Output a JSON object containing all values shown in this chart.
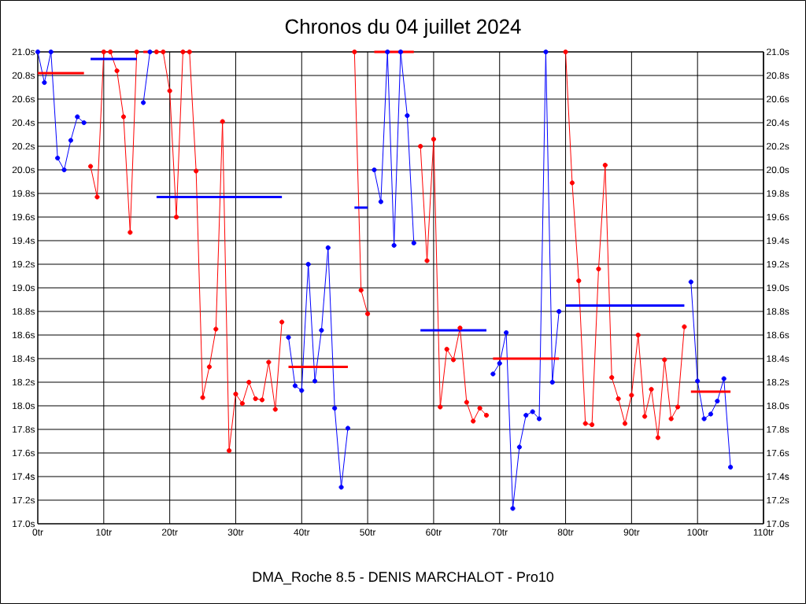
{
  "chart_data": {
    "type": "line",
    "title": "Chronos du 04 juillet 2024",
    "xlabel": "DMA_Roche 8.5 - DENIS MARCHALOT - Pro10",
    "marker": "circle",
    "grid": true,
    "xlim": [
      0,
      110
    ],
    "ylim": [
      17.0,
      21.0
    ],
    "y2lim": [
      17.0,
      21.0
    ],
    "xticks": [
      {
        "value": 0,
        "label": "0tr"
      },
      {
        "value": 10,
        "label": "10tr"
      },
      {
        "value": 20,
        "label": "20tr"
      },
      {
        "value": 30,
        "label": "30tr"
      },
      {
        "value": 40,
        "label": "40tr"
      },
      {
        "value": 50,
        "label": "50tr"
      },
      {
        "value": 60,
        "label": "60tr"
      },
      {
        "value": 70,
        "label": "70tr"
      },
      {
        "value": 80,
        "label": "80tr"
      },
      {
        "value": 90,
        "label": "90tr"
      },
      {
        "value": 100,
        "label": "100tr"
      },
      {
        "value": 110,
        "label": "110tr"
      }
    ],
    "yticks": [
      {
        "value": 17.0,
        "label": "17.0s"
      },
      {
        "value": 17.2,
        "label": "17.2s"
      },
      {
        "value": 17.4,
        "label": "17.4s"
      },
      {
        "value": 17.6,
        "label": "17.6s"
      },
      {
        "value": 17.8,
        "label": "17.8s"
      },
      {
        "value": 18.0,
        "label": "18.0s"
      },
      {
        "value": 18.2,
        "label": "18.2s"
      },
      {
        "value": 18.4,
        "label": "18.4s"
      },
      {
        "value": 18.6,
        "label": "18.6s"
      },
      {
        "value": 18.8,
        "label": "18.8s"
      },
      {
        "value": 19.0,
        "label": "19.0s"
      },
      {
        "value": 19.2,
        "label": "19.2s"
      },
      {
        "value": 19.4,
        "label": "19.4s"
      },
      {
        "value": 19.6,
        "label": "19.6s"
      },
      {
        "value": 19.8,
        "label": "19.8s"
      },
      {
        "value": 20.0,
        "label": "20.0s"
      },
      {
        "value": 20.2,
        "label": "20.2s"
      },
      {
        "value": 20.4,
        "label": "20.4s"
      },
      {
        "value": 20.6,
        "label": "20.6s"
      },
      {
        "value": 20.8,
        "label": "20.8s"
      },
      {
        "value": 21.0,
        "label": "21.0s"
      }
    ],
    "y2ticks": [
      {
        "value": 17.0,
        "label": "17.0s"
      },
      {
        "value": 17.2,
        "label": "17.2s"
      },
      {
        "value": 17.4,
        "label": "17.4s"
      },
      {
        "value": 17.6,
        "label": "17.6s"
      },
      {
        "value": 17.8,
        "label": "17.8s"
      },
      {
        "value": 18.0,
        "label": "18.0s"
      },
      {
        "value": 18.2,
        "label": "18.2s"
      },
      {
        "value": 18.4,
        "label": "18.4s"
      },
      {
        "value": 18.6,
        "label": "18.6s"
      },
      {
        "value": 18.8,
        "label": "18.8s"
      },
      {
        "value": 19.0,
        "label": "19.0s"
      },
      {
        "value": 19.2,
        "label": "19.2s"
      },
      {
        "value": 19.4,
        "label": "19.4s"
      },
      {
        "value": 19.6,
        "label": "19.6s"
      },
      {
        "value": 19.8,
        "label": "19.8s"
      },
      {
        "value": 20.0,
        "label": "20.0s"
      },
      {
        "value": 20.2,
        "label": "20.2s"
      },
      {
        "value": 20.4,
        "label": "20.4s"
      },
      {
        "value": 20.6,
        "label": "20.6s"
      },
      {
        "value": 20.8,
        "label": "20.8s"
      },
      {
        "value": 21.0,
        "label": "21.0s"
      }
    ],
    "series": [
      {
        "color": "#0000ff",
        "x": [
          0,
          1,
          2,
          3,
          4,
          5,
          6,
          7
        ],
        "values": [
          21.0,
          20.74,
          21.0,
          20.1,
          20.0,
          20.25,
          20.45,
          20.4
        ]
      },
      {
        "color": "#ff0000",
        "x": [
          8,
          9,
          10,
          11,
          12,
          13,
          14,
          15
        ],
        "values": [
          20.03,
          19.77,
          21.0,
          21.0,
          20.84,
          20.45,
          19.47,
          21.0
        ]
      },
      {
        "color": "#0000ff",
        "x": [
          16,
          17
        ],
        "values": [
          20.57,
          21.0
        ]
      },
      {
        "color": "#ff0000",
        "x": [
          18,
          19,
          20,
          21,
          22,
          23,
          24,
          25,
          26,
          27,
          28,
          29,
          30,
          31,
          32,
          33,
          34,
          35,
          36,
          37
        ],
        "values": [
          21.0,
          21.0,
          20.67,
          19.6,
          21.0,
          21.0,
          19.99,
          18.07,
          18.33,
          18.65,
          20.41,
          17.62,
          18.1,
          18.02,
          18.2,
          18.06,
          18.05,
          18.37,
          17.97,
          18.71
        ]
      },
      {
        "color": "#0000ff",
        "x": [
          38,
          39,
          40,
          41,
          42,
          43,
          44,
          45,
          46,
          47
        ],
        "values": [
          18.58,
          18.17,
          18.13,
          19.2,
          18.21,
          18.64,
          19.34,
          17.98,
          17.31,
          17.81
        ]
      },
      {
        "color": "#ff0000",
        "x": [
          48,
          49,
          50
        ],
        "values": [
          21.0,
          18.98,
          18.78
        ]
      },
      {
        "color": "#0000ff",
        "x": [
          51,
          52,
          53,
          54,
          55,
          56,
          57
        ],
        "values": [
          20.0,
          19.73,
          21.0,
          19.36,
          21.0,
          20.46,
          19.38
        ]
      },
      {
        "color": "#ff0000",
        "x": [
          58,
          59,
          60,
          61,
          62,
          63,
          64,
          65,
          66,
          67,
          68
        ],
        "values": [
          20.2,
          19.23,
          20.26,
          17.99,
          18.48,
          18.39,
          18.66,
          18.03,
          17.87,
          17.98,
          17.92
        ]
      },
      {
        "color": "#0000ff",
        "x": [
          69,
          70,
          71,
          72,
          73,
          74,
          75,
          76,
          77,
          78,
          79
        ],
        "values": [
          18.27,
          18.36,
          18.62,
          17.13,
          17.65,
          17.92,
          17.95,
          17.89,
          21.0,
          18.2,
          18.8
        ]
      },
      {
        "color": "#ff0000",
        "x": [
          80,
          81,
          82,
          83,
          84,
          85,
          86,
          87,
          88,
          89,
          90,
          91,
          92,
          93,
          94,
          95,
          96,
          97,
          98
        ],
        "values": [
          21.0,
          19.89,
          19.06,
          17.85,
          17.84,
          19.16,
          20.04,
          18.24,
          18.06,
          17.85,
          18.09,
          18.6,
          17.91,
          18.14,
          17.73,
          18.39,
          17.89,
          17.99,
          18.67
        ]
      },
      {
        "color": "#0000ff",
        "x": [
          99,
          100,
          101,
          102,
          103,
          104,
          105
        ],
        "values": [
          19.05,
          18.21,
          17.89,
          17.93,
          18.04,
          18.23,
          17.48
        ]
      },
      {
        "color": "#ff0000",
        "marker": "none",
        "x": [
          0,
          7
        ],
        "values": [
          20.82,
          20.82
        ]
      },
      {
        "color": "#0000ff",
        "marker": "none",
        "x": [
          8,
          15
        ],
        "values": [
          20.94,
          20.94
        ]
      },
      {
        "color": "#ff0000",
        "marker": "none",
        "x": [
          16,
          17
        ],
        "values": [
          21.0,
          21.0
        ]
      },
      {
        "color": "#0000ff",
        "marker": "none",
        "x": [
          18,
          37
        ],
        "values": [
          19.77,
          19.77
        ]
      },
      {
        "color": "#ff0000",
        "marker": "none",
        "x": [
          38,
          47
        ],
        "values": [
          18.33,
          18.33
        ]
      },
      {
        "color": "#0000ff",
        "marker": "none",
        "x": [
          48,
          50
        ],
        "values": [
          19.68,
          19.68
        ]
      },
      {
        "color": "#ff0000",
        "marker": "none",
        "x": [
          51,
          57
        ],
        "values": [
          21.0,
          21.0
        ]
      },
      {
        "color": "#0000ff",
        "marker": "none",
        "x": [
          58,
          68
        ],
        "values": [
          18.64,
          18.64
        ]
      },
      {
        "color": "#ff0000",
        "marker": "none",
        "x": [
          69,
          79
        ],
        "values": [
          18.4,
          18.4
        ]
      },
      {
        "color": "#0000ff",
        "marker": "none",
        "x": [
          80,
          98
        ],
        "values": [
          18.85,
          18.85
        ]
      },
      {
        "color": "#ff0000",
        "marker": "none",
        "x": [
          99,
          105
        ],
        "values": [
          18.12,
          18.12
        ]
      }
    ]
  }
}
